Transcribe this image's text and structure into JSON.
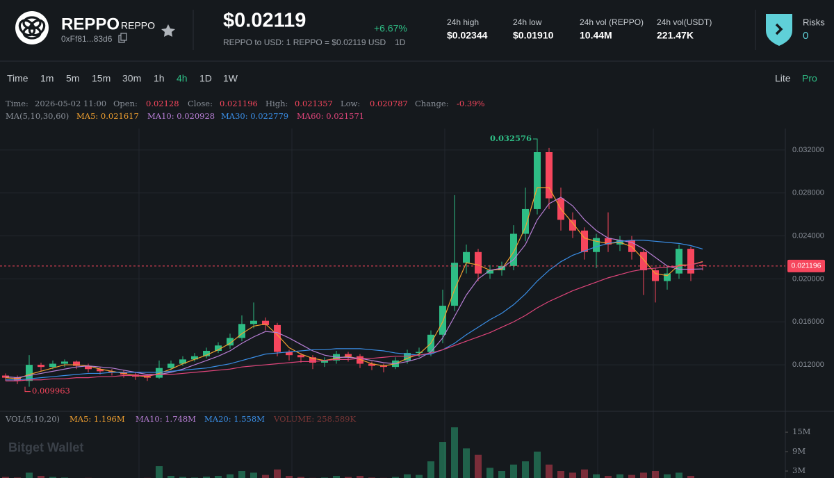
{
  "header": {
    "token_name": "REPPO",
    "token_symbol": "REPPO",
    "address": "0xFf81...83d6",
    "price": "$0.02119",
    "change": "+6.67%",
    "conversion": "REPPO to USD: 1 REPPO = $0.02119 USD",
    "conversion_period": "1D",
    "stats": [
      {
        "label": "24h high",
        "value": "$0.02344"
      },
      {
        "label": "24h low",
        "value": "$0.01910"
      },
      {
        "label": "24h vol (REPPO)",
        "value": "10.44M"
      },
      {
        "label": "24h vol(USDT)",
        "value": "221.47K"
      }
    ],
    "risks_label": "Risks",
    "risks_value": "0"
  },
  "timeframes": {
    "items": [
      "Time",
      "1m",
      "5m",
      "15m",
      "30m",
      "1h",
      "4h",
      "1D",
      "1W"
    ],
    "active_index": 6
  },
  "modes": {
    "items": [
      "Lite",
      "Pro"
    ],
    "active_index": 1
  },
  "ohlc_info": [
    {
      "label": "Time:",
      "value": "2026-05-02 11:00"
    },
    {
      "label": "Open:",
      "value": "0.02128"
    },
    {
      "label": "Close:",
      "value": "0.021196"
    },
    {
      "label": "High:",
      "value": "0.021357"
    },
    {
      "label": "Low:",
      "value": "0.020787"
    },
    {
      "label": "Change:",
      "value": "-0.39%"
    }
  ],
  "ma_title": "MA(5,10,30,60)",
  "vol_info": {
    "title": "VOL(5,10,20)",
    "items": [
      {
        "text": "MA5: 1.196M",
        "color": "#f0a030"
      },
      {
        "text": "MA10: 1.748M",
        "color": "#b87fd6"
      },
      {
        "text": "MA20: 1.558M",
        "color": "#3a8ee6"
      },
      {
        "text": "VOLUME: 258.589K",
        "color": "#7a3636"
      }
    ]
  },
  "watermark": "Bitget Wallet",
  "chart_data": [
    {
      "type": "candlestick",
      "up_color": "#2ebd85",
      "down_color": "#f6465d",
      "grid": true,
      "ylim": [
        0.0078,
        0.034
      ],
      "yticks": [
        {
          "value": 0.012,
          "label": "0.012000"
        },
        {
          "value": 0.016,
          "label": "0.016000"
        },
        {
          "value": 0.02,
          "label": "0.020000"
        },
        {
          "value": 0.024,
          "label": "0.024000"
        },
        {
          "value": 0.028,
          "label": "0.028000"
        },
        {
          "value": 0.032,
          "label": "0.032000"
        }
      ],
      "open": [
        0.011,
        0.0108,
        0.0105,
        0.012,
        0.0118,
        0.0121,
        0.0123,
        0.0119,
        0.0116,
        0.0114,
        0.0113,
        0.0111,
        0.0109,
        0.0108,
        0.0117,
        0.0121,
        0.0125,
        0.0128,
        0.0133,
        0.0138,
        0.0145,
        0.0158,
        0.0161,
        0.0157,
        0.0132,
        0.0129,
        0.0127,
        0.0122,
        0.0124,
        0.013,
        0.0128,
        0.0121,
        0.0119,
        0.0118,
        0.0124,
        0.0131,
        0.0132,
        0.0148,
        0.0175,
        0.0215,
        0.0225,
        0.0205,
        0.0208,
        0.0212,
        0.0242,
        0.0265,
        0.0318,
        0.0275,
        0.0255,
        0.0245,
        0.0225,
        0.0238,
        0.0232,
        0.0236,
        0.0225,
        0.0208,
        0.0198,
        0.0205,
        0.0228,
        0.02128
      ],
      "high": [
        0.0112,
        0.011,
        0.0129,
        0.0122,
        0.0124,
        0.0125,
        0.0124,
        0.0121,
        0.0118,
        0.0116,
        0.0115,
        0.0113,
        0.0111,
        0.0124,
        0.0124,
        0.0128,
        0.0131,
        0.0136,
        0.0141,
        0.0149,
        0.0166,
        0.0178,
        0.0164,
        0.0159,
        0.0134,
        0.0131,
        0.0129,
        0.0127,
        0.0133,
        0.0132,
        0.013,
        0.0123,
        0.0121,
        0.0127,
        0.0134,
        0.0136,
        0.0152,
        0.019,
        0.0278,
        0.0232,
        0.0228,
        0.0213,
        0.0216,
        0.025,
        0.0285,
        0.032576,
        0.0322,
        0.0285,
        0.0262,
        0.0248,
        0.0242,
        0.0262,
        0.024,
        0.024,
        0.0228,
        0.021,
        0.0212,
        0.0232,
        0.023,
        0.021357
      ],
      "low": [
        0.0105,
        0.0102,
        0.009963,
        0.0114,
        0.0116,
        0.0118,
        0.0116,
        0.0113,
        0.0111,
        0.011,
        0.0108,
        0.0106,
        0.0105,
        0.0107,
        0.0115,
        0.0119,
        0.0123,
        0.0126,
        0.0131,
        0.0135,
        0.0142,
        0.0154,
        0.0152,
        0.0128,
        0.0124,
        0.0122,
        0.0116,
        0.0118,
        0.0121,
        0.0123,
        0.0117,
        0.0115,
        0.0113,
        0.0116,
        0.0121,
        0.0127,
        0.0128,
        0.014,
        0.017,
        0.0205,
        0.0198,
        0.02,
        0.0203,
        0.0208,
        0.0235,
        0.026,
        0.0265,
        0.0245,
        0.0238,
        0.0218,
        0.021,
        0.0225,
        0.0226,
        0.0218,
        0.0185,
        0.0178,
        0.019,
        0.02,
        0.0198,
        0.020787
      ],
      "close": [
        0.0108,
        0.0105,
        0.012,
        0.0118,
        0.0121,
        0.0123,
        0.0119,
        0.0116,
        0.0114,
        0.0113,
        0.0111,
        0.0109,
        0.0108,
        0.0117,
        0.0121,
        0.0125,
        0.0128,
        0.0133,
        0.0138,
        0.0145,
        0.0158,
        0.0161,
        0.0157,
        0.0132,
        0.0129,
        0.0127,
        0.0122,
        0.0124,
        0.013,
        0.0128,
        0.0121,
        0.0119,
        0.0118,
        0.0124,
        0.0131,
        0.0132,
        0.0148,
        0.0175,
        0.0215,
        0.0225,
        0.0205,
        0.0208,
        0.0212,
        0.0242,
        0.0265,
        0.0318,
        0.0275,
        0.0255,
        0.0245,
        0.0225,
        0.0238,
        0.0232,
        0.0236,
        0.0225,
        0.0208,
        0.0198,
        0.0205,
        0.0228,
        0.0205,
        0.021196
      ],
      "series": [
        {
          "legend_label": "MA5: 0.021617",
          "color": "#f0a030",
          "values": [
            0.0108,
            0.0107,
            0.0111,
            0.0114,
            0.0117,
            0.012,
            0.012,
            0.0119,
            0.0116,
            0.0114,
            0.0112,
            0.011,
            0.0109,
            0.0112,
            0.0116,
            0.0121,
            0.0125,
            0.0129,
            0.0134,
            0.014,
            0.0149,
            0.0156,
            0.0158,
            0.0148,
            0.0136,
            0.013,
            0.0126,
            0.0124,
            0.0126,
            0.0128,
            0.0125,
            0.0121,
            0.0119,
            0.0121,
            0.0126,
            0.013,
            0.014,
            0.016,
            0.019,
            0.0215,
            0.0213,
            0.0208,
            0.0209,
            0.0225,
            0.0248,
            0.0285,
            0.0285,
            0.0265,
            0.0252,
            0.0238,
            0.0235,
            0.0233,
            0.0234,
            0.023,
            0.0218,
            0.0205,
            0.0203,
            0.0213,
            0.0213,
            0.021617
          ]
        },
        {
          "legend_label": "MA10: 0.020928",
          "color": "#b87fd6",
          "values": [
            0.0109,
            0.0108,
            0.011,
            0.0112,
            0.0114,
            0.0116,
            0.0118,
            0.0119,
            0.0118,
            0.0117,
            0.0115,
            0.0113,
            0.0111,
            0.0111,
            0.0113,
            0.0116,
            0.012,
            0.0124,
            0.0128,
            0.0133,
            0.014,
            0.0146,
            0.0151,
            0.015,
            0.0145,
            0.0139,
            0.0133,
            0.0129,
            0.0127,
            0.0127,
            0.0126,
            0.0124,
            0.0122,
            0.0121,
            0.0123,
            0.0126,
            0.0132,
            0.0145,
            0.0165,
            0.0185,
            0.02,
            0.0208,
            0.021,
            0.0218,
            0.0232,
            0.0255,
            0.027,
            0.0276,
            0.0268,
            0.0255,
            0.0245,
            0.0238,
            0.0236,
            0.0234,
            0.0228,
            0.022,
            0.0212,
            0.0209,
            0.0209,
            0.020928
          ]
        },
        {
          "legend_label": "MA30: 0.022779",
          "color": "#3a8ee6",
          "values": [
            0.0106,
            0.0106,
            0.0107,
            0.0108,
            0.0109,
            0.011,
            0.0111,
            0.0112,
            0.0112,
            0.0113,
            0.0113,
            0.0113,
            0.0113,
            0.0113,
            0.0114,
            0.0115,
            0.0116,
            0.0117,
            0.0119,
            0.0121,
            0.0124,
            0.0127,
            0.013,
            0.0131,
            0.0132,
            0.0133,
            0.0134,
            0.0134,
            0.0135,
            0.0135,
            0.0135,
            0.0134,
            0.0133,
            0.0131,
            0.013,
            0.0129,
            0.013,
            0.0134,
            0.014,
            0.0148,
            0.0155,
            0.0162,
            0.0168,
            0.0176,
            0.0186,
            0.0198,
            0.0208,
            0.0216,
            0.0222,
            0.0226,
            0.023,
            0.0233,
            0.0235,
            0.0236,
            0.0236,
            0.0235,
            0.0234,
            0.0233,
            0.0231,
            0.022779
          ]
        },
        {
          "legend_label": "MA60: 0.021571",
          "color": "#e0457b",
          "values": [
            0.0105,
            0.0105,
            0.0106,
            0.0106,
            0.0107,
            0.0107,
            0.0108,
            0.0108,
            0.0109,
            0.0109,
            0.011,
            0.011,
            0.011,
            0.0111,
            0.0111,
            0.0112,
            0.0113,
            0.0114,
            0.0115,
            0.0116,
            0.0118,
            0.0119,
            0.012,
            0.0121,
            0.0122,
            0.0123,
            0.0123,
            0.0124,
            0.0125,
            0.0125,
            0.0126,
            0.0126,
            0.0127,
            0.0128,
            0.0128,
            0.0129,
            0.0131,
            0.0134,
            0.0138,
            0.0142,
            0.0146,
            0.015,
            0.0155,
            0.016,
            0.0166,
            0.0173,
            0.0179,
            0.0184,
            0.0189,
            0.0193,
            0.0197,
            0.0201,
            0.0204,
            0.0207,
            0.0209,
            0.021,
            0.0211,
            0.0212,
            0.0213,
            0.021571
          ]
        }
      ],
      "high_label": "0.032576",
      "low_label": "0.009963",
      "last_price_label": "0.021196"
    },
    {
      "type": "bar",
      "ylim": [
        0,
        20800000
      ],
      "yticks": [
        {
          "value": 3000000,
          "label": "3M"
        },
        {
          "value": 9000000,
          "label": "9M"
        },
        {
          "value": 15000000,
          "label": "15M"
        }
      ],
      "values": [
        1200000,
        1000000,
        2500000,
        1500000,
        1200000,
        1000000,
        800000,
        900000,
        700000,
        800000,
        600000,
        700000,
        900000,
        4500000,
        1500000,
        1200000,
        1000000,
        1300000,
        1500000,
        2000000,
        3000000,
        2500000,
        1800000,
        3500000,
        1500000,
        1200000,
        900000,
        1000000,
        1500000,
        1200000,
        1500000,
        1000000,
        900000,
        1200000,
        2000000,
        1800000,
        6000000,
        12000000,
        16500000,
        10000000,
        8000000,
        4000000,
        3000000,
        5000000,
        6000000,
        9000000,
        5000000,
        3000000,
        2500000,
        3500000,
        2000000,
        1500000,
        2000000,
        1800000,
        2500000,
        3000000,
        2000000,
        2500000,
        1500000,
        258589
      ]
    }
  ]
}
